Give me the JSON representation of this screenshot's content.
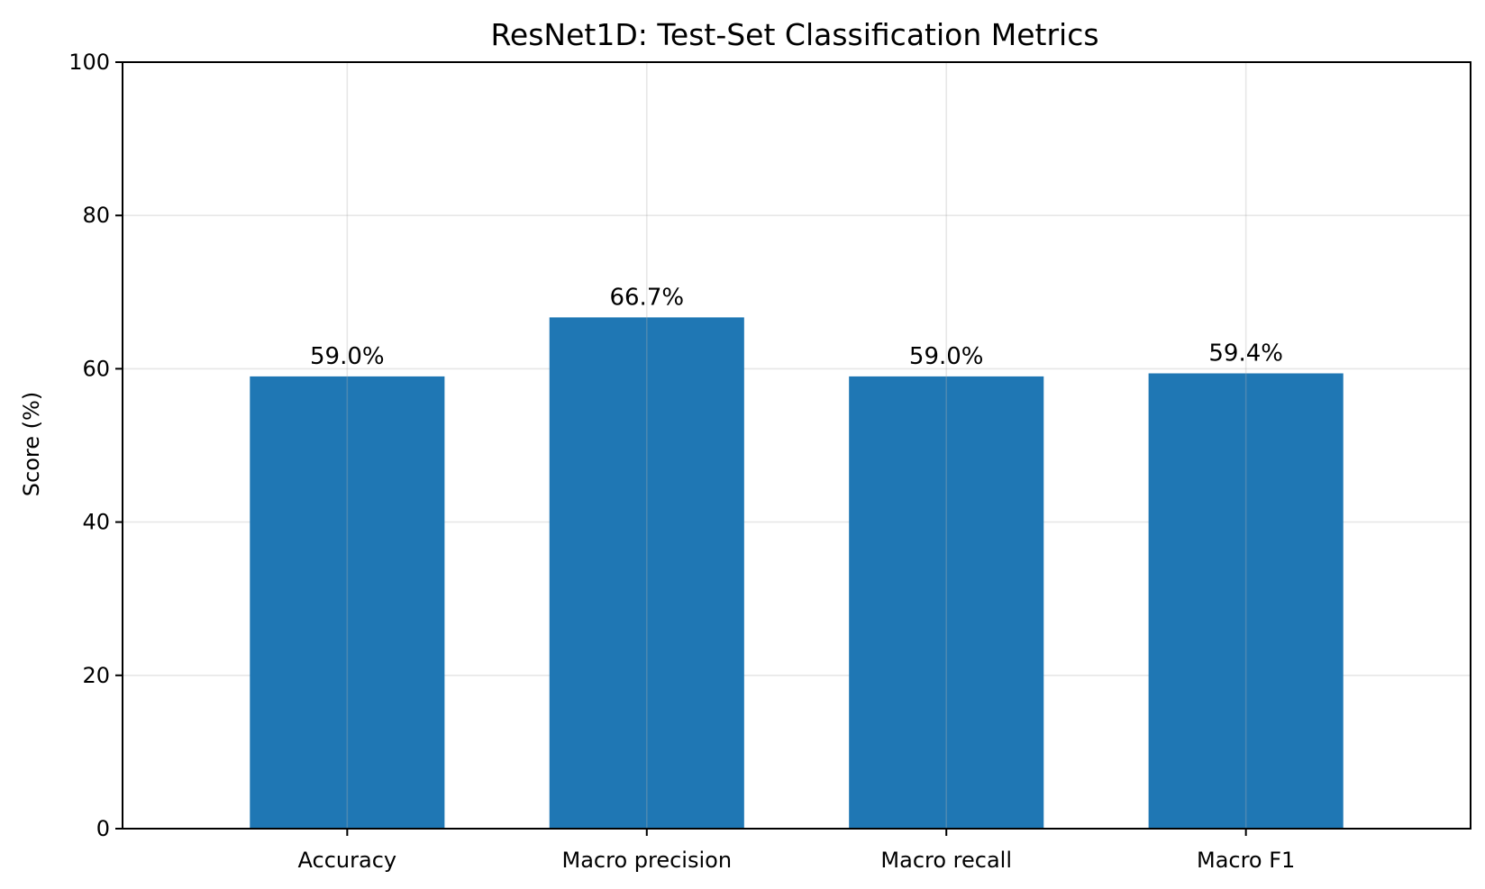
{
  "chart_data": {
    "type": "bar",
    "title": "ResNet1D: Test-Set Classification Metrics",
    "xlabel": "",
    "ylabel": "Score (%)",
    "categories": [
      "Accuracy",
      "Macro precision",
      "Macro recall",
      "Macro F1"
    ],
    "values": [
      59.0,
      66.7,
      59.0,
      59.4
    ],
    "value_labels": [
      "59.0%",
      "66.7%",
      "59.0%",
      "59.4%"
    ],
    "ylim": [
      0,
      100
    ],
    "yticks": [
      0,
      20,
      40,
      60,
      80,
      100
    ],
    "ytick_labels": [
      "0",
      "20",
      "40",
      "60",
      "80",
      "100"
    ],
    "grid": true,
    "bar_color": "#1f77b4"
  }
}
